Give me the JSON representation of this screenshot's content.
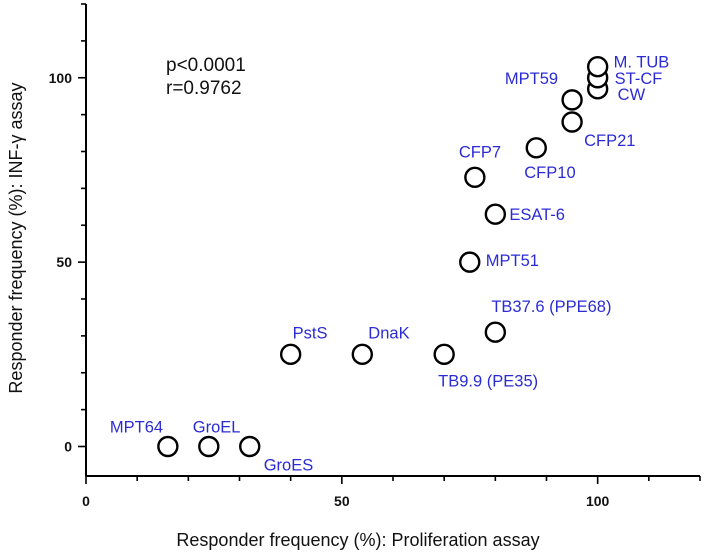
{
  "chart_data": {
    "type": "scatter",
    "title": "",
    "xlabel": "Responder frequency (%): Proliferation assay",
    "ylabel": "Responder frequency (%): INF-γ assay",
    "xlim": [
      0,
      120
    ],
    "ylim": [
      -8,
      120
    ],
    "xticks": [
      0,
      50,
      100
    ],
    "yticks": [
      0,
      50,
      100
    ],
    "grid": false,
    "annotations": [
      "p<0.0001",
      "r=0.9762"
    ],
    "label_color": "#2b2bd6",
    "points": [
      {
        "label": "MPT64",
        "x": 16,
        "y": 0
      },
      {
        "label": "GroEL",
        "x": 24,
        "y": 0
      },
      {
        "label": "GroES",
        "x": 32,
        "y": 0
      },
      {
        "label": "PstS",
        "x": 40,
        "y": 25
      },
      {
        "label": "DnaK",
        "x": 54,
        "y": 25
      },
      {
        "label": "TB9.9 (PE35)",
        "x": 70,
        "y": 25
      },
      {
        "label": "TB37.6 (PPE68)",
        "x": 80,
        "y": 31
      },
      {
        "label": "MPT51",
        "x": 75,
        "y": 50
      },
      {
        "label": "ESAT-6",
        "x": 80,
        "y": 63
      },
      {
        "label": "CFP7",
        "x": 76,
        "y": 73
      },
      {
        "label": "CFP10",
        "x": 88,
        "y": 81
      },
      {
        "label": "CFP21",
        "x": 95,
        "y": 88
      },
      {
        "label": "MPT59",
        "x": 95,
        "y": 94
      },
      {
        "label": "CW",
        "x": 100,
        "y": 97
      },
      {
        "label": "ST-CF",
        "x": 100,
        "y": 100
      },
      {
        "label": "M. TUB",
        "x": 100,
        "y": 103
      }
    ]
  }
}
